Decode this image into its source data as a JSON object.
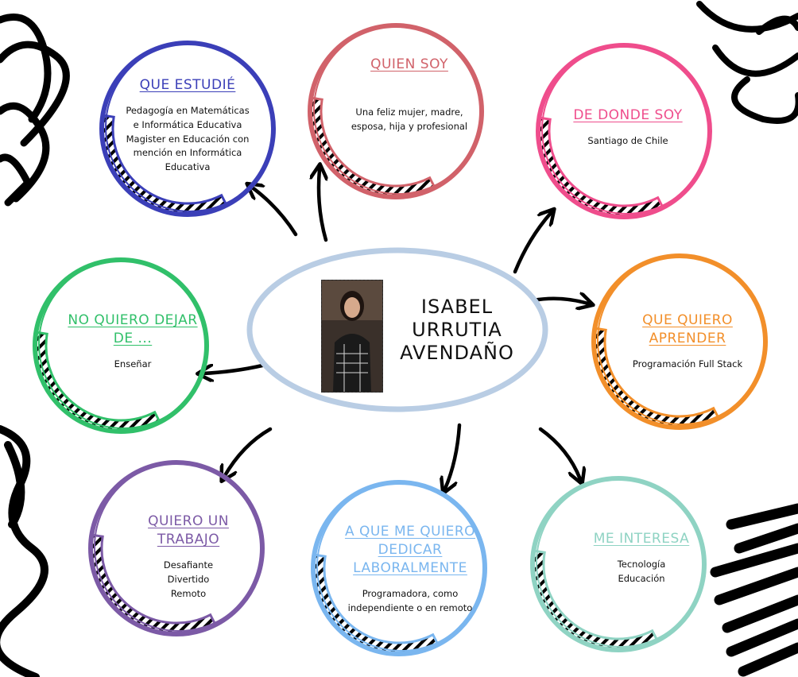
{
  "center": {
    "name_lines": [
      "ISABEL",
      "URRUTIA",
      "AVENDAÑO"
    ],
    "ellipse_color": "#b9cde4",
    "photo": "portrait-photo"
  },
  "nodes": {
    "que_estudie": {
      "title_lines": [
        "QUE ESTUDIÉ"
      ],
      "body_lines": [
        "Pedagogía en Matemáticas",
        "e Informática Educativa",
        "Magister en Educación con",
        "mención en Informática",
        "Educativa"
      ],
      "color": "#3b3fb8"
    },
    "quien_soy": {
      "title_lines": [
        "QUIEN SOY"
      ],
      "body_lines": [
        "Una feliz mujer, madre,",
        "esposa, hija y profesional"
      ],
      "color": "#d1626a"
    },
    "de_donde_soy": {
      "title_lines": [
        "DE DONDE SOY"
      ],
      "body_lines": [
        "Santiago de Chile"
      ],
      "color": "#ef4d8c"
    },
    "no_quiero_dejar": {
      "title_lines": [
        "NO QUIERO DEJAR",
        "DE ..."
      ],
      "body_lines": [
        "Enseñar"
      ],
      "color": "#31c06a"
    },
    "que_quiero_aprender": {
      "title_lines": [
        "QUE QUIERO",
        "APRENDER"
      ],
      "body_lines": [
        "Programación Full Stack"
      ],
      "color": "#f28f2a"
    },
    "quiero_un_trabajo": {
      "title_lines": [
        "QUIERO UN",
        "TRABAJO"
      ],
      "body_lines": [
        "Desafiante",
        "Divertido",
        "Remoto"
      ],
      "color": "#7c5aa6"
    },
    "a_que_me_quiero_dedicar": {
      "title_lines": [
        "A QUE ME QUIERO",
        "DEDICAR",
        "LABORALMENTE"
      ],
      "body_lines": [
        "Programadora, como",
        "independiente o en remoto"
      ],
      "color": "#7ab6ef"
    },
    "me_interesa": {
      "title_lines": [
        "ME INTERESA"
      ],
      "body_lines": [
        "Tecnología",
        "Educación"
      ],
      "color": "#8fd3c3"
    }
  }
}
